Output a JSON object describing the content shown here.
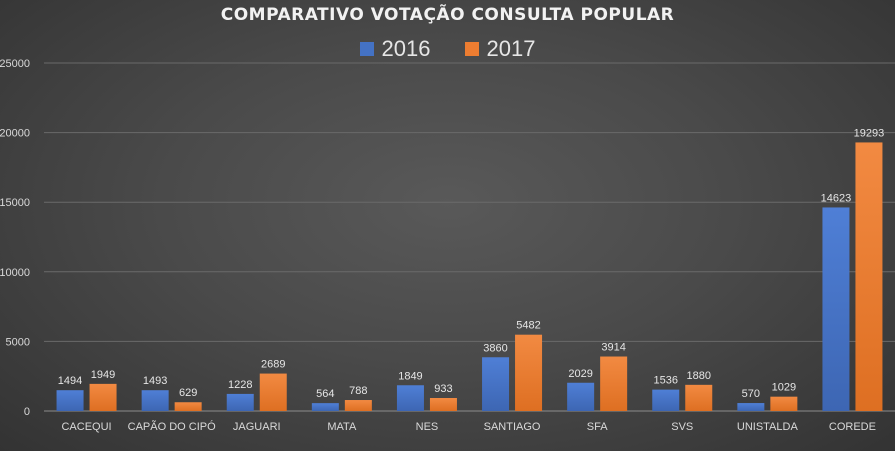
{
  "chart_data": {
    "type": "bar",
    "title": "COMPARATIVO VOTAÇÃO CONSULTA POPULAR",
    "xlabel": "",
    "ylabel": "",
    "ylim": [
      0,
      25000
    ],
    "yticks": [
      0,
      5000,
      10000,
      15000,
      20000,
      25000
    ],
    "grid": true,
    "legend_position": "top-center",
    "categories": [
      "CACEQUI",
      "CAPÃO DO CIPÓ",
      "JAGUARI",
      "MATA",
      "NES",
      "SANTIAGO",
      "SFA",
      "SVS",
      "UNISTALDA",
      "COREDE"
    ],
    "series": [
      {
        "name": "2016",
        "color": "#4472C4",
        "values": [
          1494,
          1493,
          1228,
          564,
          1849,
          3860,
          2029,
          1536,
          570,
          14623
        ]
      },
      {
        "name": "2017",
        "color": "#ED7D31",
        "values": [
          1949,
          629,
          2689,
          788,
          933,
          5482,
          3914,
          1880,
          1029,
          19293
        ]
      }
    ]
  }
}
